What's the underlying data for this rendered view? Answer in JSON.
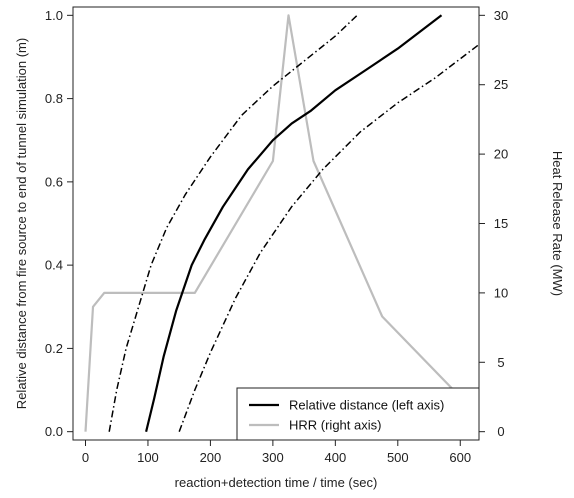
{
  "chart_data": {
    "type": "line",
    "title": "",
    "xlabel": "reaction+detection time / time (sec)",
    "ylabel_left": "Relative distance from fire source to end of tunnel simulation (m)",
    "ylabel_right": "Heat Release Rate (MW)",
    "xlim": [
      -20,
      630
    ],
    "ylim_left": [
      -0.02,
      1.02
    ],
    "ylim_right": [
      -0.6,
      30.6
    ],
    "x_ticks": [
      0,
      100,
      200,
      300,
      400,
      500,
      600
    ],
    "x_tick_labels": [
      "0",
      "100",
      "200",
      "300",
      "400",
      "500",
      "600"
    ],
    "y_left_ticks": [
      0.0,
      0.2,
      0.4,
      0.6,
      0.8,
      1.0
    ],
    "y_left_tick_labels": [
      "0.0",
      "0.2",
      "0.4",
      "0.6",
      "0.8",
      "1.0"
    ],
    "y_right_ticks": [
      0,
      5,
      10,
      15,
      20,
      25,
      30
    ],
    "y_right_tick_labels": [
      "0",
      "5",
      "10",
      "15",
      "20",
      "25",
      "30"
    ],
    "grid": false,
    "legend_position": "bottom-right",
    "legend": [
      "Relative distance (left axis)",
      "HRR (right axis)"
    ],
    "series": [
      {
        "name": "Relative distance (left axis)",
        "axis": "left",
        "style": "solid",
        "color": "#000000",
        "x": [
          97,
          110,
          125,
          145,
          170,
          190,
          220,
          260,
          300,
          330,
          360,
          400,
          450,
          500,
          570
        ],
        "y": [
          0.0,
          0.08,
          0.18,
          0.29,
          0.4,
          0.46,
          0.54,
          0.63,
          0.7,
          0.74,
          0.77,
          0.82,
          0.87,
          0.92,
          1.0
        ]
      },
      {
        "name": "",
        "axis": "left",
        "style": "dashdot",
        "color": "#000000",
        "x": [
          38,
          50,
          65,
          85,
          105,
          130,
          160,
          200,
          250,
          300,
          350,
          400,
          435
        ],
        "y": [
          0.0,
          0.1,
          0.2,
          0.3,
          0.4,
          0.49,
          0.57,
          0.66,
          0.76,
          0.83,
          0.89,
          0.95,
          1.0
        ]
      },
      {
        "name": "",
        "axis": "left",
        "style": "dashdot",
        "color": "#000000",
        "x": [
          150,
          175,
          200,
          240,
          280,
          330,
          380,
          440,
          500,
          560,
          630
        ],
        "y": [
          0.0,
          0.1,
          0.19,
          0.32,
          0.43,
          0.54,
          0.63,
          0.72,
          0.79,
          0.85,
          0.93
        ]
      },
      {
        "name": "HRR (right axis)",
        "axis": "right",
        "style": "solid",
        "color": "#bdbdbd",
        "x": [
          0,
          12,
          30,
          175,
          300,
          325,
          365,
          475,
          600
        ],
        "y": [
          0,
          9,
          10,
          10,
          19.5,
          30,
          19.5,
          8.3,
          2.5
        ]
      }
    ]
  }
}
